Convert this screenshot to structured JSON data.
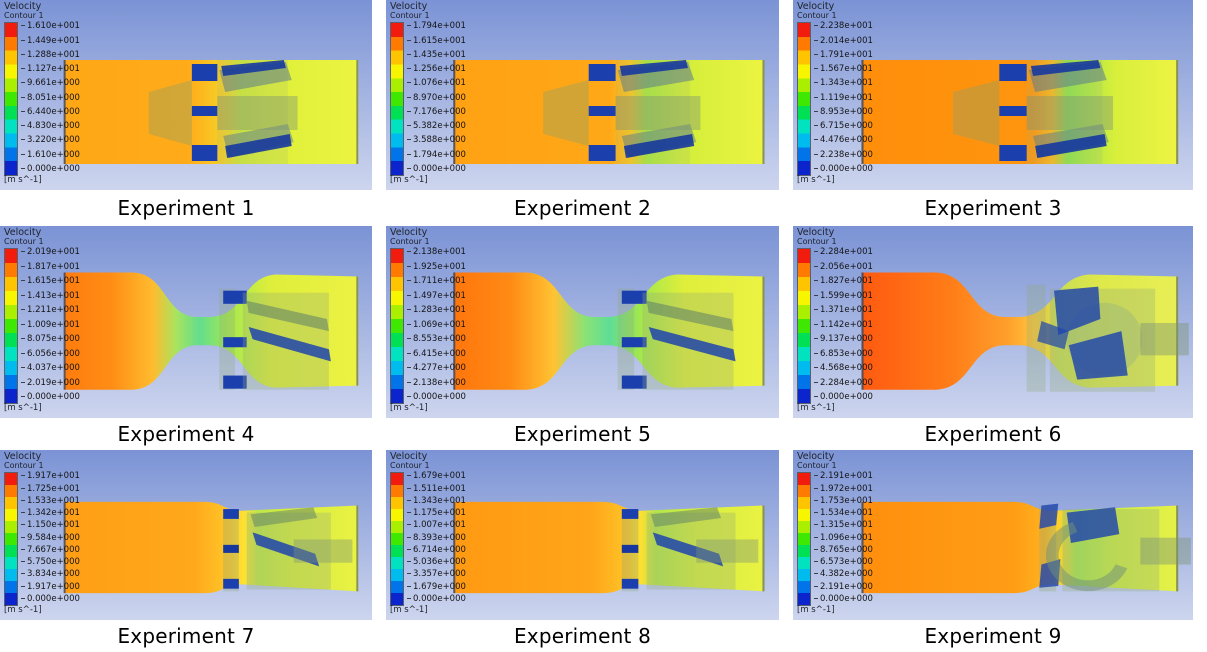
{
  "figure": {
    "background": {
      "top": "#7b93d5",
      "bottom": "#cdd5ee"
    },
    "palette": {
      "inlet_orange": "#ff8e0b",
      "outlet_yellow": "#ecf243",
      "throat_green": "#63df8d",
      "blade_blue": "#1c3fae",
      "translucent_body": "#93aa7c"
    },
    "colorbar_colors": [
      "#f11c0e",
      "#ff7a00",
      "#ffc400",
      "#f8f500",
      "#aaee00",
      "#3fe800",
      "#00e055",
      "#00e2c0",
      "#00bcee",
      "#0074e8",
      "#0b24cc"
    ],
    "panels": [
      {
        "caption": "Experiment 1",
        "flow_type": "straight",
        "legend": {
          "title": "Velocity",
          "subtitle": "Contour 1",
          "units": "[m s^-1]",
          "values": [
            "1.610e+001",
            "1.449e+001",
            "1.288e+001",
            "1.127e+001",
            "9.661e+000",
            "8.051e+000",
            "6.440e+000",
            "4.830e+000",
            "3.220e+000",
            "1.610e+000",
            "0.000e+000"
          ]
        }
      },
      {
        "caption": "Experiment 2",
        "flow_type": "straight",
        "legend": {
          "title": "Velocity",
          "subtitle": "Contour 1",
          "units": "[m s^-1]",
          "values": [
            "1.794e+001",
            "1.615e+001",
            "1.435e+001",
            "1.256e+001",
            "1.076e+001",
            "8.970e+000",
            "7.176e+000",
            "5.382e+000",
            "3.588e+000",
            "1.794e+000",
            "0.000e+000"
          ]
        }
      },
      {
        "caption": "Experiment 3",
        "flow_type": "straight",
        "legend": {
          "title": "Velocity",
          "subtitle": "Contour 1",
          "units": "[m s^-1]",
          "values": [
            "2.238e+001",
            "2.014e+001",
            "1.791e+001",
            "1.567e+001",
            "1.343e+001",
            "1.119e+001",
            "8.953e+000",
            "6.715e+000",
            "4.476e+000",
            "2.238e+000",
            "0.000e+000"
          ]
        }
      },
      {
        "caption": "Experiment 4",
        "flow_type": "venturi",
        "legend": {
          "title": "Velocity",
          "subtitle": "Contour 1",
          "units": "[m s^-1]",
          "values": [
            "2.019e+001",
            "1.817e+001",
            "1.615e+001",
            "1.413e+001",
            "1.211e+001",
            "1.009e+001",
            "8.075e+000",
            "6.056e+000",
            "4.037e+000",
            "2.019e+000",
            "0.000e+000"
          ]
        }
      },
      {
        "caption": "Experiment 5",
        "flow_type": "venturi",
        "legend": {
          "title": "Velocity",
          "subtitle": "Contour 1",
          "units": "[m s^-1]",
          "values": [
            "2.138e+001",
            "1.925e+001",
            "1.711e+001",
            "1.497e+001",
            "1.283e+001",
            "1.069e+001",
            "8.553e+000",
            "6.415e+000",
            "4.277e+000",
            "2.138e+000",
            "0.000e+000"
          ]
        }
      },
      {
        "caption": "Experiment 6",
        "flow_type": "venturi-big",
        "legend": {
          "title": "Velocity",
          "subtitle": "Contour 1",
          "units": "[m s^-1]",
          "values": [
            "2.284e+001",
            "2.056e+001",
            "1.827e+001",
            "1.599e+001",
            "1.371e+001",
            "1.142e+001",
            "9.137e+000",
            "6.853e+000",
            "4.568e+000",
            "2.284e+000",
            "0.000e+000"
          ]
        }
      },
      {
        "caption": "Experiment 7",
        "flow_type": "neck",
        "legend": {
          "title": "Velocity",
          "subtitle": "Contour 1",
          "units": "[m s^-1]",
          "values": [
            "1.917e+001",
            "1.725e+001",
            "1.533e+001",
            "1.342e+001",
            "1.150e+001",
            "9.584e+000",
            "7.667e+000",
            "5.750e+000",
            "3.834e+000",
            "1.917e+000",
            "0.000e+000"
          ]
        }
      },
      {
        "caption": "Experiment 8",
        "flow_type": "neck",
        "legend": {
          "title": "Velocity",
          "subtitle": "Contour 1",
          "units": "[m s^-1]",
          "values": [
            "1.679e+001",
            "1.511e+001",
            "1.343e+001",
            "1.175e+001",
            "1.007e+001",
            "8.393e+000",
            "6.714e+000",
            "5.036e+000",
            "3.357e+000",
            "1.679e+000",
            "0.000e+000"
          ]
        }
      },
      {
        "caption": "Experiment 9",
        "flow_type": "neck-big",
        "legend": {
          "title": "Velocity",
          "subtitle": "Contour 1",
          "units": "[m s^-1]",
          "values": [
            "2.191e+001",
            "1.972e+001",
            "1.753e+001",
            "1.534e+001",
            "1.315e+001",
            "1.096e+001",
            "8.765e+000",
            "6.573e+000",
            "4.382e+000",
            "2.191e+000",
            "0.000e+000"
          ]
        }
      }
    ]
  },
  "chart_data": [
    {
      "type": "heatmap",
      "title": "Experiment 1",
      "variable": "Velocity",
      "contour": "Contour 1",
      "units": "m s^-1",
      "range": [
        0,
        16.1
      ],
      "legend_ticks": [
        16.1,
        14.49,
        12.88,
        11.27,
        9.661,
        8.051,
        6.44,
        4.83,
        3.22,
        1.61,
        0.0
      ]
    },
    {
      "type": "heatmap",
      "title": "Experiment 2",
      "variable": "Velocity",
      "contour": "Contour 1",
      "units": "m s^-1",
      "range": [
        0,
        17.94
      ],
      "legend_ticks": [
        17.94,
        16.15,
        14.35,
        12.56,
        10.76,
        8.97,
        7.176,
        5.382,
        3.588,
        1.794,
        0.0
      ]
    },
    {
      "type": "heatmap",
      "title": "Experiment 3",
      "variable": "Velocity",
      "contour": "Contour 1",
      "units": "m s^-1",
      "range": [
        0,
        22.38
      ],
      "legend_ticks": [
        22.38,
        20.14,
        17.91,
        15.67,
        13.43,
        11.19,
        8.953,
        6.715,
        4.476,
        2.238,
        0.0
      ]
    },
    {
      "type": "heatmap",
      "title": "Experiment 4",
      "variable": "Velocity",
      "contour": "Contour 1",
      "units": "m s^-1",
      "range": [
        0,
        20.19
      ],
      "legend_ticks": [
        20.19,
        18.17,
        16.15,
        14.13,
        12.11,
        10.09,
        8.075,
        6.056,
        4.037,
        2.019,
        0.0
      ]
    },
    {
      "type": "heatmap",
      "title": "Experiment 5",
      "variable": "Velocity",
      "contour": "Contour 1",
      "units": "m s^-1",
      "range": [
        0,
        21.38
      ],
      "legend_ticks": [
        21.38,
        19.25,
        17.11,
        14.97,
        12.83,
        10.69,
        8.553,
        6.415,
        4.277,
        2.138,
        0.0
      ]
    },
    {
      "type": "heatmap",
      "title": "Experiment 6",
      "variable": "Velocity",
      "contour": "Contour 1",
      "units": "m s^-1",
      "range": [
        0,
        22.84
      ],
      "legend_ticks": [
        22.84,
        20.56,
        18.27,
        15.99,
        13.71,
        11.42,
        9.137,
        6.853,
        4.568,
        2.284,
        0.0
      ]
    },
    {
      "type": "heatmap",
      "title": "Experiment 7",
      "variable": "Velocity",
      "contour": "Contour 1",
      "units": "m s^-1",
      "range": [
        0,
        19.17
      ],
      "legend_ticks": [
        19.17,
        17.25,
        15.33,
        13.42,
        11.5,
        9.584,
        7.667,
        5.75,
        3.834,
        1.917,
        0.0
      ]
    },
    {
      "type": "heatmap",
      "title": "Experiment 8",
      "variable": "Velocity",
      "contour": "Contour 1",
      "units": "m s^-1",
      "range": [
        0,
        16.79
      ],
      "legend_ticks": [
        16.79,
        15.11,
        13.43,
        11.75,
        10.07,
        8.393,
        6.714,
        5.036,
        3.357,
        1.679,
        0.0
      ]
    },
    {
      "type": "heatmap",
      "title": "Experiment 9",
      "variable": "Velocity",
      "contour": "Contour 1",
      "units": "m s^-1",
      "range": [
        0,
        21.91
      ],
      "legend_ticks": [
        21.91,
        19.72,
        17.53,
        15.34,
        13.15,
        10.96,
        8.765,
        6.573,
        4.382,
        2.191,
        0.0
      ]
    }
  ]
}
